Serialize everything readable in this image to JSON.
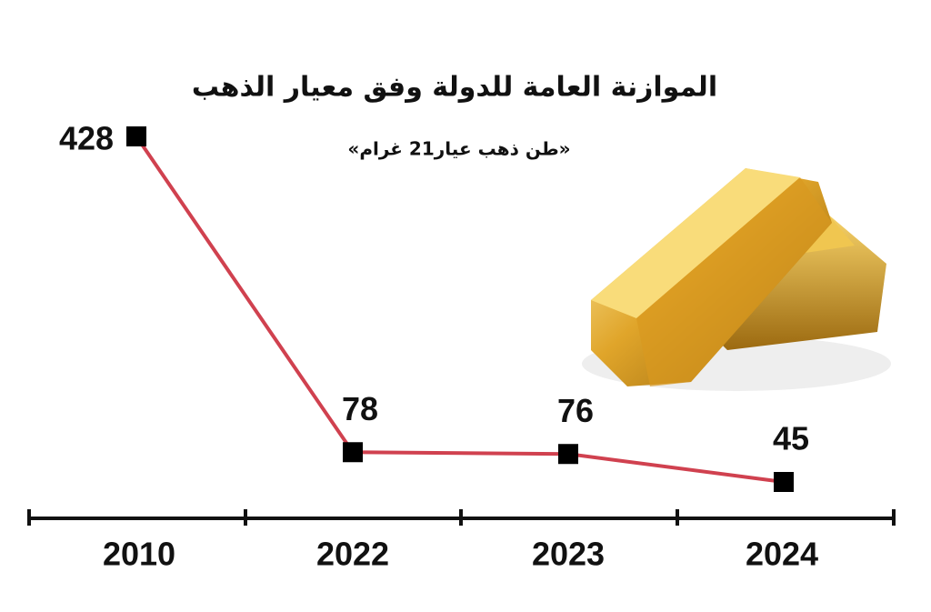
{
  "chart_data": {
    "type": "line",
    "title": "الموازنة العامة للدولة وفق معيار الذهب",
    "subtitle": "«طن ذهب عيار21 غرام»",
    "categories": [
      "2010",
      "2022",
      "2023",
      "2024"
    ],
    "series": [
      {
        "values": [
          428,
          78,
          76,
          45
        ],
        "color": "#d0414f"
      }
    ]
  }
}
